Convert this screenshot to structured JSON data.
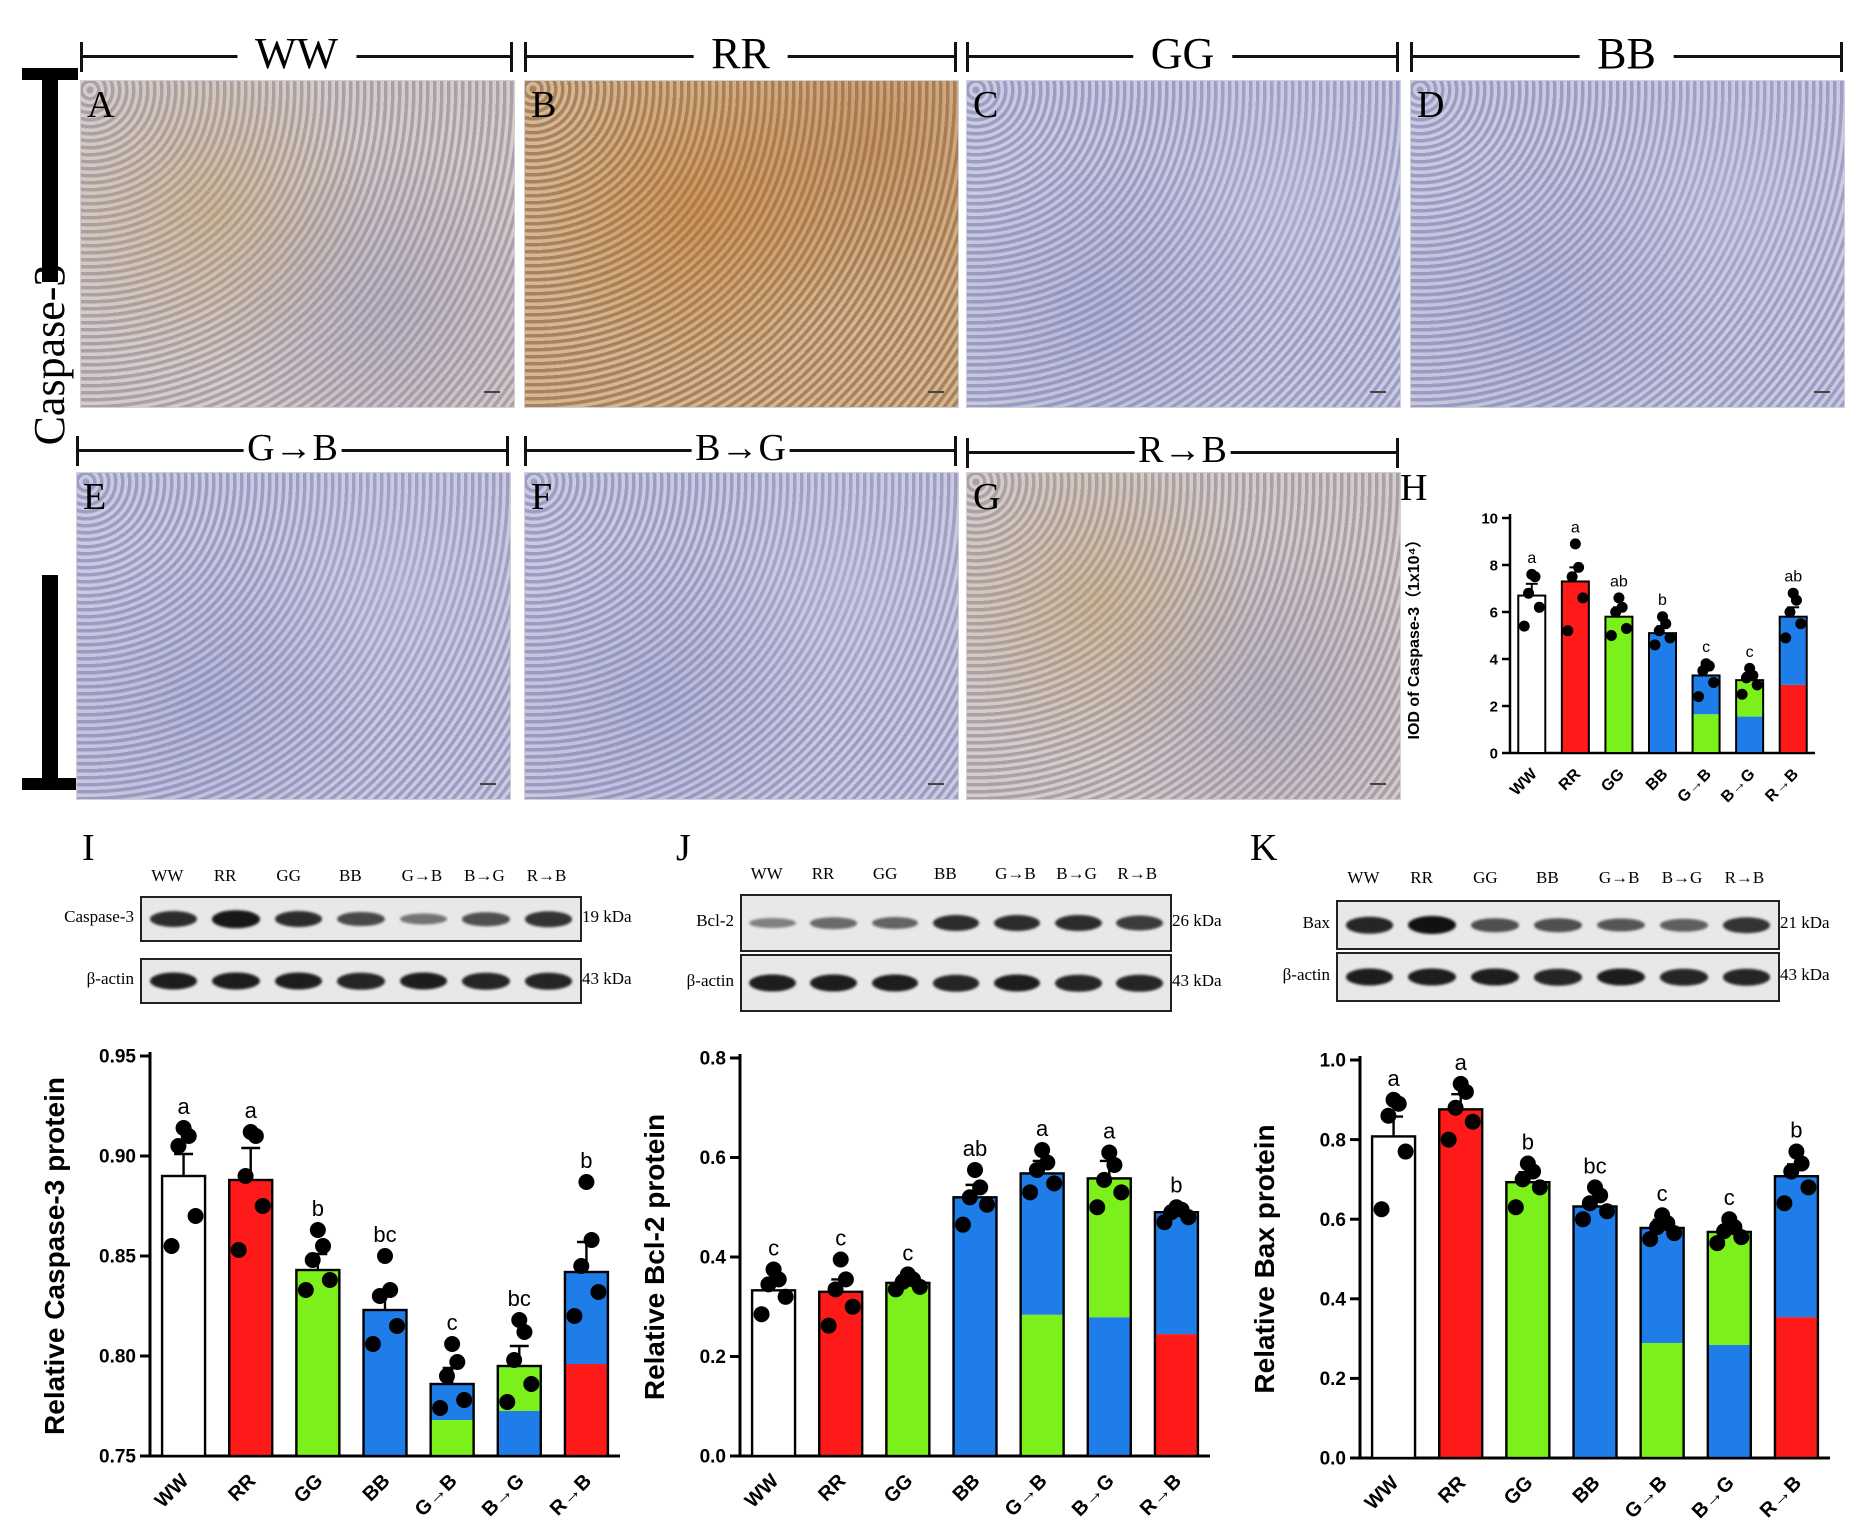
{
  "ihc": {
    "row_label": "Caspase-3",
    "groups_top": [
      "WW",
      "RR",
      "GG",
      "BB"
    ],
    "groups_bottom": [
      "G→B",
      "B→G",
      "R→B"
    ],
    "letters_top": [
      "A",
      "B",
      "C",
      "D"
    ],
    "letters_bottom": [
      "E",
      "F",
      "G"
    ],
    "chart_letter": "H"
  },
  "western": {
    "lanes": [
      "WW",
      "RR",
      "GG",
      "BB",
      "G→B",
      "B→G",
      "R→B"
    ],
    "I": {
      "letter": "I",
      "protein": "Caspase-3",
      "protein_kda": "19 kDa",
      "actin": "β-actin",
      "actin_kda": "43 kDa",
      "band_strength": [
        0.8,
        0.95,
        0.8,
        0.6,
        0.3,
        0.55,
        0.75
      ]
    },
    "J": {
      "letter": "J",
      "protein": "Bcl-2",
      "protein_kda": "26 kDa",
      "actin": "β-actin",
      "actin_kda": "43 kDa",
      "band_strength": [
        0.2,
        0.35,
        0.4,
        0.8,
        0.8,
        0.8,
        0.7
      ]
    },
    "K": {
      "letter": "K",
      "protein": "Bax",
      "protein_kda": "21 kDa",
      "actin": "β-actin",
      "actin_kda": "43 kDa",
      "band_strength": [
        0.85,
        1.0,
        0.55,
        0.55,
        0.5,
        0.45,
        0.75
      ]
    }
  },
  "colors": {
    "WW": "#ffffff",
    "RR": "#ff1a1a",
    "GG": "#7cf01a",
    "BB": "#1e7de8"
  },
  "chart_data": [
    {
      "id": "H",
      "type": "bar",
      "categories": [
        "WW",
        "RR",
        "GG",
        "BB",
        "G→B",
        "B→G",
        "R→B"
      ],
      "values": [
        6.7,
        7.3,
        5.8,
        5.1,
        3.3,
        3.1,
        5.8
      ],
      "errors": [
        0.5,
        0.6,
        0.4,
        0.3,
        0.3,
        0.3,
        0.4
      ],
      "letters": [
        "a",
        "a",
        "ab",
        "b",
        "c",
        "c",
        "ab"
      ],
      "points": [
        [
          5.4,
          6.2,
          6.8,
          7.5,
          7.6
        ],
        [
          5.2,
          6.6,
          7.5,
          7.9,
          8.9
        ],
        [
          5.0,
          5.3,
          6.0,
          6.2,
          6.6
        ],
        [
          4.6,
          4.9,
          5.2,
          5.5,
          5.8
        ],
        [
          2.4,
          3.0,
          3.5,
          3.7,
          3.8
        ],
        [
          2.5,
          2.9,
          3.2,
          3.3,
          3.6
        ],
        [
          4.9,
          5.5,
          6.0,
          6.5,
          6.8
        ]
      ],
      "ylabel": "IOD of Caspase-3（1x10⁴）",
      "ylim": [
        0,
        10
      ],
      "yticks": [
        "0",
        "2",
        "4",
        "6",
        "8",
        "10"
      ]
    },
    {
      "id": "I",
      "type": "bar",
      "categories": [
        "WW",
        "RR",
        "GG",
        "BB",
        "G→B",
        "B→G",
        "R→B"
      ],
      "values": [
        0.89,
        0.888,
        0.843,
        0.823,
        0.786,
        0.795,
        0.842
      ],
      "errors": [
        0.011,
        0.016,
        0.008,
        0.009,
        0.008,
        0.01,
        0.015
      ],
      "letters": [
        "a",
        "a",
        "b",
        "bc",
        "c",
        "bc",
        "b"
      ],
      "points": [
        [
          0.855,
          0.87,
          0.905,
          0.91,
          0.914
        ],
        [
          0.853,
          0.875,
          0.89,
          0.91,
          0.912
        ],
        [
          0.833,
          0.838,
          0.848,
          0.855,
          0.863
        ],
        [
          0.806,
          0.815,
          0.83,
          0.833,
          0.85
        ],
        [
          0.774,
          0.778,
          0.79,
          0.797,
          0.806
        ],
        [
          0.777,
          0.786,
          0.798,
          0.812,
          0.818
        ],
        [
          0.82,
          0.832,
          0.845,
          0.858,
          0.887
        ]
      ],
      "ylabel": "Relative Caspase-3 protein",
      "ylim": [
        0.75,
        0.95
      ],
      "yticks": [
        "0.75",
        "0.80",
        "0.85",
        "0.90",
        "0.95"
      ]
    },
    {
      "id": "J",
      "type": "bar",
      "categories": [
        "WW",
        "RR",
        "GG",
        "BB",
        "G→B",
        "B→G",
        "R→B"
      ],
      "values": [
        0.333,
        0.33,
        0.348,
        0.52,
        0.568,
        0.558,
        0.49
      ],
      "errors": [
        0.018,
        0.025,
        0.015,
        0.025,
        0.025,
        0.035,
        0.012
      ],
      "letters": [
        "c",
        "c",
        "c",
        "ab",
        "a",
        "a",
        "b"
      ],
      "points": [
        [
          0.285,
          0.32,
          0.345,
          0.355,
          0.375
        ],
        [
          0.262,
          0.3,
          0.335,
          0.355,
          0.395
        ],
        [
          0.335,
          0.34,
          0.35,
          0.355,
          0.365
        ],
        [
          0.465,
          0.505,
          0.52,
          0.54,
          0.575
        ],
        [
          0.53,
          0.548,
          0.575,
          0.59,
          0.615
        ],
        [
          0.5,
          0.53,
          0.555,
          0.585,
          0.61
        ],
        [
          0.47,
          0.48,
          0.49,
          0.495,
          0.5
        ]
      ],
      "ylabel": "Relative Bcl-2 protein",
      "ylim": [
        0.0,
        0.8
      ],
      "yticks": [
        "0.0",
        "0.2",
        "0.4",
        "0.6",
        "0.8"
      ]
    },
    {
      "id": "K",
      "type": "bar",
      "categories": [
        "WW",
        "RR",
        "GG",
        "BB",
        "G→B",
        "B→G",
        "R→B"
      ],
      "values": [
        0.808,
        0.876,
        0.693,
        0.632,
        0.578,
        0.568,
        0.708
      ],
      "errors": [
        0.05,
        0.038,
        0.025,
        0.02,
        0.02,
        0.012,
        0.03
      ],
      "letters": [
        "a",
        "a",
        "b",
        "bc",
        "c",
        "c",
        "b"
      ],
      "points": [
        [
          0.625,
          0.77,
          0.86,
          0.89,
          0.9
        ],
        [
          0.8,
          0.845,
          0.88,
          0.92,
          0.94
        ],
        [
          0.63,
          0.68,
          0.7,
          0.72,
          0.74
        ],
        [
          0.6,
          0.62,
          0.64,
          0.66,
          0.68
        ],
        [
          0.55,
          0.565,
          0.58,
          0.59,
          0.61
        ],
        [
          0.54,
          0.555,
          0.57,
          0.58,
          0.6
        ],
        [
          0.64,
          0.68,
          0.72,
          0.74,
          0.77
        ]
      ],
      "ylabel": "Relative Bax protein",
      "ylim": [
        0.0,
        1.0
      ],
      "yticks": [
        "0.0",
        "0.2",
        "0.4",
        "0.6",
        "0.8",
        "1.0"
      ]
    }
  ]
}
